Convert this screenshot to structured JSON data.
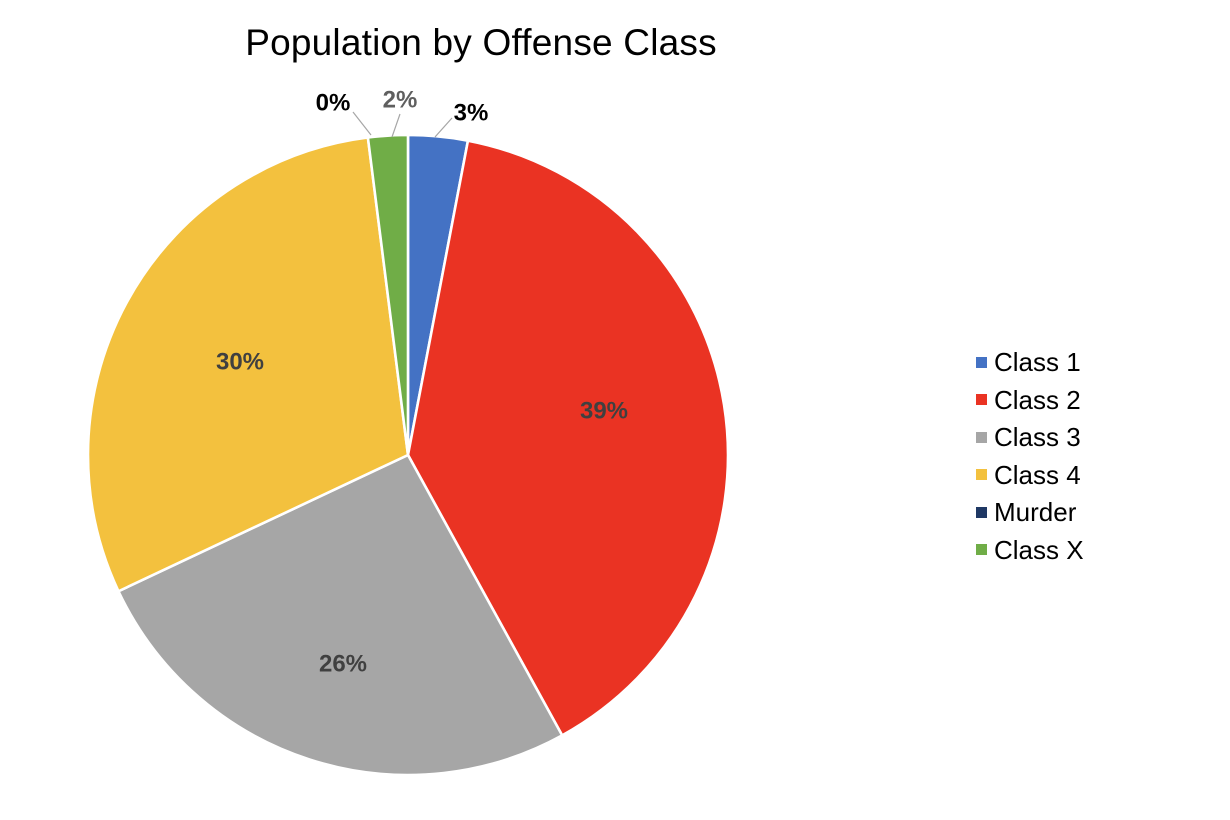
{
  "window": {
    "background": "#FFFFFF"
  },
  "chart_data": {
    "type": "pie",
    "title": "Population by Offense Class",
    "categories": [
      "Class 1",
      "Class 2",
      "Class 3",
      "Class 4",
      "Murder",
      "Class X"
    ],
    "values": [
      3,
      39,
      26,
      30,
      0,
      2
    ],
    "value_unit": "percent_of_total",
    "labels": [
      "3%",
      "39%",
      "26%",
      "30%",
      "0%",
      "2%"
    ],
    "label_placement": [
      "outside",
      "inside",
      "inside",
      "inside",
      "outside",
      "outside"
    ],
    "label_colors": [
      "#000000",
      "#404040",
      "#404040",
      "#404040",
      "#000000",
      "#5F5F5F"
    ],
    "colors": [
      "#4472C4",
      "#EA3323",
      "#A6A6A6",
      "#F3C13E",
      "#1F3864",
      "#70AD47"
    ],
    "slice_border_color": "#FFFFFF",
    "leader_line_color": "#A6A6A6",
    "legend_position": "right",
    "start_angle_deg": 0,
    "direction": "clockwise"
  }
}
